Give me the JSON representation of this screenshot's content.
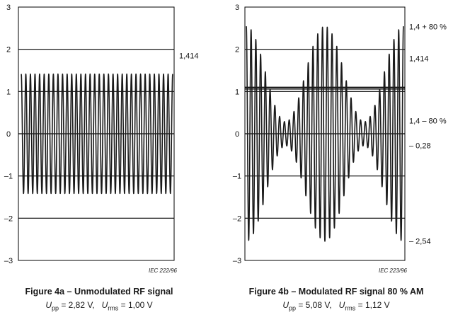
{
  "colors": {
    "background": "#ffffff",
    "trace": "#1a1a1a",
    "grid": "#000000",
    "text": "#111111"
  },
  "figures": [
    {
      "caption": "Figure 4a – Unmodulated RF signal",
      "formula": {
        "upp_symbol": "U",
        "upp_sub": "pp",
        "upp_value": " = 2,82 V,",
        "urms_symbol": "U",
        "urms_sub": "rms",
        "urms_value": " = 1,00 V"
      },
      "iec_ref": "IEC  222/96",
      "right_labels": [
        "1,414"
      ]
    },
    {
      "caption": "Figure 4b – Modulated RF signal 80 % AM",
      "formula": {
        "upp_symbol": "U",
        "upp_sub": "pp",
        "upp_value": " = 5,08 V,",
        "urms_symbol": "U",
        "urms_sub": "rms",
        "urms_value": " = 1,12 V"
      },
      "iec_ref": "IEC  223/96",
      "right_labels": [
        "1,4 + 80 %",
        "1,414",
        "1,4 – 80 %",
        "– 0,28",
        "– 2,54"
      ]
    }
  ],
  "chart_data": [
    {
      "type": "line",
      "title": "Figure 4a – Unmodulated RF signal",
      "xlabel": "",
      "ylabel": "",
      "ylim": [
        -3,
        3
      ],
      "y_ticks": [
        "3",
        "2",
        "1",
        "0",
        "–1",
        "–2",
        "–3"
      ],
      "y_tick_values": [
        3,
        2,
        1,
        0,
        -1,
        -2,
        -3
      ],
      "grid_values": [
        2,
        1,
        0,
        -1,
        -2
      ],
      "grid": true,
      "series": [
        {
          "cycles": 33,
          "amplitude": 1.414,
          "modulation_depth": 0,
          "modulation_cycles": 0
        }
      ],
      "reference_lines": [],
      "annotations": [
        {
          "text": "1,414",
          "y": 1.414
        }
      ]
    },
    {
      "type": "line",
      "title": "Figure 4b – Modulated RF signal 80 % AM",
      "xlabel": "",
      "ylabel": "",
      "ylim": [
        -3,
        3
      ],
      "y_ticks": [
        "3",
        "2",
        "1",
        "0",
        "–1",
        "–2",
        "–3"
      ],
      "y_tick_values": [
        3,
        2,
        1,
        0,
        -1,
        -2,
        -3
      ],
      "grid_values": [
        2,
        1,
        0,
        -1,
        -2
      ],
      "grid": true,
      "series": [
        {
          "cycles": 33,
          "amplitude": 1.414,
          "modulation_depth": 0.8,
          "modulation_cycles": 2,
          "peak": 2.54,
          "trough": 0.28
        }
      ],
      "reference_lines": [
        1.1,
        1.06
      ],
      "annotations": [
        {
          "text": "1,4 + 80 %",
          "y": 2.54
        },
        {
          "text": "1,414",
          "y": 1.414
        },
        {
          "text": "1,4 – 80 %",
          "y": 0.28
        },
        {
          "text": "– 0,28",
          "y": -0.28
        },
        {
          "text": "– 2,54",
          "y": -2.54
        }
      ]
    }
  ]
}
